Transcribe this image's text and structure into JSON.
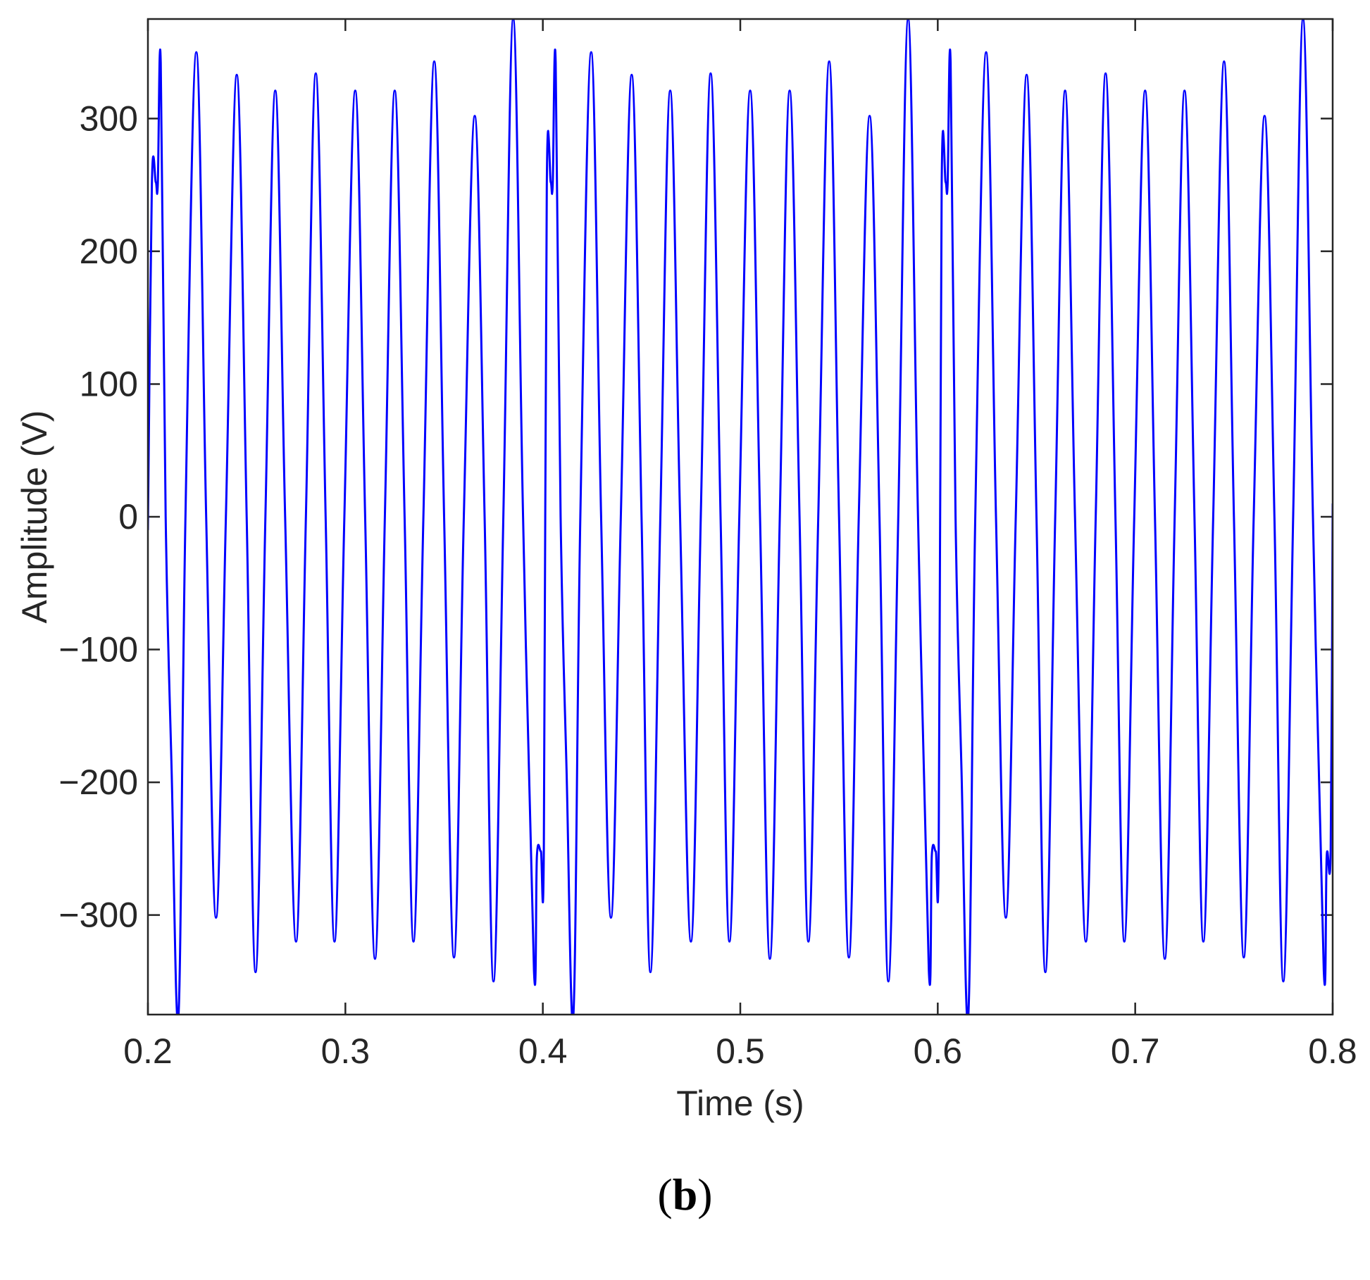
{
  "chart_data": {
    "type": "line",
    "xlabel": "Time (s)",
    "ylabel": "Amplitude (V)",
    "xlim": [
      0.2,
      0.8
    ],
    "ylim": [
      -375,
      375
    ],
    "xticks": [
      0.2,
      0.3,
      0.4,
      0.5,
      0.6,
      0.7,
      0.8
    ],
    "xtick_labels": [
      "0.2",
      "0.3",
      "0.4",
      "0.5",
      "0.6",
      "0.7",
      "0.8"
    ],
    "yticks": [
      300,
      200,
      100,
      0,
      -100,
      -200,
      -300
    ],
    "ytick_labels": [
      "300",
      "200",
      "100",
      "0",
      "−100",
      "−200",
      "−300"
    ],
    "grid": false,
    "line_color": "#0000ff",
    "series": [
      {
        "x": [
          0.2,
          0.202,
          0.204,
          0.205,
          0.2065,
          0.209,
          0.212,
          0.2155,
          0.219,
          0.2245,
          0.2295,
          0.2345,
          0.2395,
          0.245,
          0.25,
          0.2545,
          0.2595,
          0.2645,
          0.2695,
          0.275,
          0.28,
          0.285,
          0.29,
          0.2945,
          0.2995,
          0.305,
          0.31,
          0.315,
          0.32,
          0.325,
          0.33,
          0.3345,
          0.3395,
          0.345,
          0.35,
          0.355,
          0.36,
          0.3655,
          0.3705,
          0.375,
          0.38,
          0.385,
          0.39,
          0.3955,
          0.397,
          0.399,
          0.4005,
          0.402,
          0.404,
          0.405,
          0.4065,
          0.409,
          0.412,
          0.4155,
          0.419,
          0.4245,
          0.4295,
          0.4345,
          0.4395,
          0.445,
          0.45,
          0.4545,
          0.4595,
          0.4645,
          0.4695,
          0.475,
          0.48,
          0.485,
          0.49,
          0.4945,
          0.4995,
          0.505,
          0.51,
          0.515,
          0.52,
          0.525,
          0.53,
          0.5345,
          0.5395,
          0.545,
          0.55,
          0.555,
          0.56,
          0.5655,
          0.5705,
          0.575,
          0.58,
          0.585,
          0.59,
          0.5955,
          0.597,
          0.599,
          0.6005,
          0.602,
          0.604,
          0.605,
          0.6065,
          0.609,
          0.612,
          0.6155,
          0.619,
          0.6245,
          0.6295,
          0.6345,
          0.6395,
          0.645,
          0.65,
          0.6545,
          0.6595,
          0.6645,
          0.6695,
          0.675,
          0.68,
          0.685,
          0.69,
          0.6945,
          0.6995,
          0.705,
          0.71,
          0.715,
          0.72,
          0.725,
          0.73,
          0.7345,
          0.7395,
          0.745,
          0.75,
          0.755,
          0.76,
          0.7655,
          0.7705,
          0.775,
          0.78,
          0.785,
          0.79,
          0.7955,
          0.797,
          0.799,
          0.8
        ],
        "y": [
          -10,
          250,
          252,
          250,
          342,
          0,
          -190,
          -375,
          0,
          350,
          0,
          -302,
          0,
          333,
          0,
          -343,
          0,
          321,
          0,
          -320,
          0,
          334,
          0,
          -320,
          0,
          321,
          0,
          -333,
          0,
          321,
          0,
          -320,
          0,
          343,
          0,
          -332,
          0,
          302,
          0,
          -350,
          0,
          375,
          0,
          -342,
          -255,
          -252,
          -250,
          250,
          252,
          250,
          342,
          0,
          -190,
          -375,
          0,
          350,
          0,
          -302,
          0,
          333,
          0,
          -343,
          0,
          321,
          0,
          -320,
          0,
          334,
          0,
          -320,
          0,
          321,
          0,
          -333,
          0,
          321,
          0,
          -320,
          0,
          343,
          0,
          -332,
          0,
          302,
          0,
          -350,
          0,
          375,
          0,
          -342,
          -255,
          -252,
          -250,
          250,
          252,
          250,
          342,
          0,
          -190,
          -375,
          0,
          350,
          0,
          -302,
          0,
          333,
          0,
          -343,
          0,
          321,
          0,
          -320,
          0,
          334,
          0,
          -320,
          0,
          321,
          0,
          -333,
          0,
          321,
          0,
          -320,
          0,
          343,
          0,
          -332,
          0,
          302,
          0,
          -350,
          0,
          375,
          0,
          -342,
          -255,
          -250,
          10
        ]
      }
    ]
  },
  "panel_label": "b"
}
